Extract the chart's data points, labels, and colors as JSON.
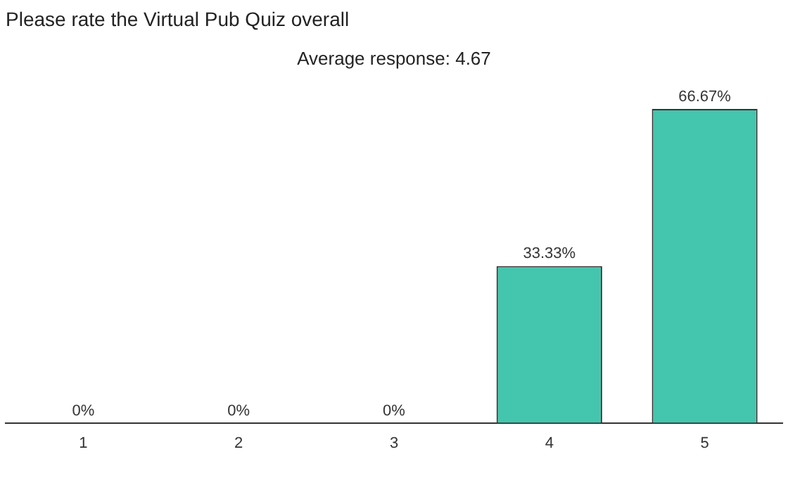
{
  "chart_data": {
    "type": "bar",
    "title": "Please rate the Virtual Pub Quiz overall",
    "subtitle": "Average response: 4.67",
    "categories": [
      "1",
      "2",
      "3",
      "4",
      "5"
    ],
    "values": [
      0,
      0,
      0,
      33.33,
      66.67
    ],
    "value_labels": [
      "0%",
      "0%",
      "0%",
      "33.33%",
      "66.67%"
    ],
    "color": "#44c5ad",
    "grid": false,
    "legend": false
  }
}
